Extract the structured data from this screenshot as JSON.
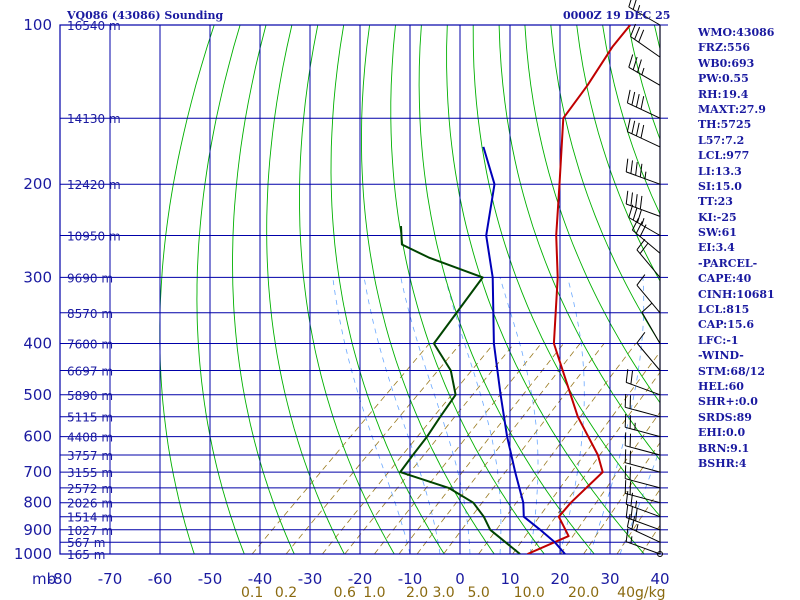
{
  "header": {
    "station": "VQ086 (43086) Sounding",
    "time": "0000Z 19 DEC 25"
  },
  "chart_data": {
    "type": "line",
    "title": "VQ086 (43086) Sounding",
    "xlabel": "",
    "ylabel": "mb",
    "xlim": [
      -80,
      40
    ],
    "ylim": [
      1000,
      100
    ],
    "pressure_ticks": [
      "100",
      "200",
      "300",
      "400",
      "500",
      "600",
      "700",
      "800",
      "900",
      "1000"
    ],
    "temperature_ticks": [
      "-80",
      "-70",
      "-60",
      "-50",
      "-40",
      "-30",
      "-20",
      "-10",
      "0",
      "10",
      "20",
      "30",
      "40"
    ],
    "mixing_ratio_ticks": [
      "0.1",
      "0.2",
      "0.6",
      "1.0",
      "2.0",
      "3.0",
      "5.0",
      "10.0",
      "20.0",
      "40g/kg"
    ],
    "height_labels": [
      {
        "p": 100,
        "label": "16540 m"
      },
      {
        "p": 150,
        "label": "14130 m"
      },
      {
        "p": 200,
        "label": "12420 m"
      },
      {
        "p": 250,
        "label": "10950 m"
      },
      {
        "p": 300,
        "label": "9690 m"
      },
      {
        "p": 350,
        "label": "8570 m"
      },
      {
        "p": 400,
        "label": "7600 m"
      },
      {
        "p": 450,
        "label": "6697 m"
      },
      {
        "p": 500,
        "label": "5890 m"
      },
      {
        "p": 550,
        "label": "5115 m"
      },
      {
        "p": 600,
        "label": "4408 m"
      },
      {
        "p": 650,
        "label": "3757 m"
      },
      {
        "p": 700,
        "label": "3155 m"
      },
      {
        "p": 750,
        "label": "2572 m"
      },
      {
        "p": 800,
        "label": "2026 m"
      },
      {
        "p": 850,
        "label": "1514 m"
      },
      {
        "p": 900,
        "label": "1027 m"
      },
      {
        "p": 950,
        "label": "567 m"
      },
      {
        "p": 1000,
        "label": "165 m"
      }
    ],
    "series": [
      {
        "values": [
          {
            "p": 1000,
            "t": 13.5
          },
          {
            "p": 925,
            "t": 18
          },
          {
            "p": 850,
            "t": 12
          },
          {
            "p": 800,
            "t": 11.5
          },
          {
            "p": 700,
            "t": 11.5
          },
          {
            "p": 650,
            "t": 7
          },
          {
            "p": 550,
            "t": -5
          },
          {
            "p": 400,
            "t": -25
          },
          {
            "p": 300,
            "t": -38
          },
          {
            "p": 250,
            "t": -47
          },
          {
            "p": 200,
            "t": -57
          },
          {
            "p": 150,
            "t": -70
          },
          {
            "p": 130,
            "t": -72
          },
          {
            "p": 110,
            "t": -75
          },
          {
            "p": 100,
            "t": -76
          }
        ]
      },
      {
        "values": [
          {
            "p": 1000,
            "t": 12
          },
          {
            "p": 900,
            "t": 1
          },
          {
            "p": 850,
            "t": -3
          },
          {
            "p": 800,
            "t": -8
          },
          {
            "p": 750,
            "t": -16
          },
          {
            "p": 700,
            "t": -29
          },
          {
            "p": 650,
            "t": -30
          },
          {
            "p": 600,
            "t": -31
          },
          {
            "p": 550,
            "t": -32.5
          },
          {
            "p": 500,
            "t": -34
          },
          {
            "p": 450,
            "t": -40
          },
          {
            "p": 400,
            "t": -49
          },
          {
            "p": 300,
            "t": -53
          },
          {
            "p": 275,
            "t": -68
          },
          {
            "p": 260,
            "t": -76
          },
          {
            "p": 240,
            "t": -80
          }
        ]
      },
      {
        "values": [
          {
            "p": 1000,
            "t": 21
          },
          {
            "p": 950,
            "t": 16.5
          },
          {
            "p": 900,
            "t": 11
          },
          {
            "p": 850,
            "t": 5
          },
          {
            "p": 800,
            "t": 2
          },
          {
            "p": 700,
            "t": -6
          },
          {
            "p": 600,
            "t": -15
          },
          {
            "p": 500,
            "t": -25
          },
          {
            "p": 400,
            "t": -37
          },
          {
            "p": 300,
            "t": -51
          },
          {
            "p": 250,
            "t": -61
          },
          {
            "p": 200,
            "t": -70
          },
          {
            "p": 170,
            "t": -80
          }
        ]
      }
    ],
    "wind_barbs": [
      {
        "p": 100,
        "dir": 300,
        "spd": 25
      },
      {
        "p": 115,
        "dir": 305,
        "spd": 30
      },
      {
        "p": 130,
        "dir": 300,
        "spd": 35
      },
      {
        "p": 150,
        "dir": 295,
        "spd": 40
      },
      {
        "p": 170,
        "dir": 295,
        "spd": 40
      },
      {
        "p": 200,
        "dir": 290,
        "spd": 45
      },
      {
        "p": 230,
        "dir": 290,
        "spd": 40
      },
      {
        "p": 250,
        "dir": 300,
        "spd": 35
      },
      {
        "p": 270,
        "dir": 310,
        "spd": 30
      },
      {
        "p": 300,
        "dir": 320,
        "spd": 20
      },
      {
        "p": 350,
        "dir": 320,
        "spd": 10
      },
      {
        "p": 400,
        "dir": 330,
        "spd": 10
      },
      {
        "p": 450,
        "dir": 320,
        "spd": 10
      },
      {
        "p": 500,
        "dir": 290,
        "spd": 20
      },
      {
        "p": 550,
        "dir": 285,
        "spd": 20
      },
      {
        "p": 600,
        "dir": 285,
        "spd": 25
      },
      {
        "p": 650,
        "dir": 285,
        "spd": 20
      },
      {
        "p": 700,
        "dir": 285,
        "spd": 20
      },
      {
        "p": 750,
        "dir": 285,
        "spd": 20
      },
      {
        "p": 800,
        "dir": 285,
        "spd": 20
      },
      {
        "p": 850,
        "dir": 290,
        "spd": 25
      },
      {
        "p": 900,
        "dir": 290,
        "spd": 30
      },
      {
        "p": 950,
        "dir": 295,
        "spd": 25
      },
      {
        "p": 1000,
        "dir": 290,
        "spd": 15
      }
    ]
  },
  "indices": [
    "WMO:43086",
    "FRZ:556",
    "WB0:693",
    "PW:0.55",
    "RH:19.4",
    "MAXT:27.9",
    "TH:5725",
    "L57:7.2",
    "LCL:977",
    "LI:13.3",
    "SI:15.0",
    "TT:23",
    "KI:-25",
    "SW:61",
    "EI:3.4",
    "-PARCEL-",
    "CAPE:40",
    "CINH:10681",
    "LCL:815",
    "CAP:15.6",
    "LFC:-1",
    "-WIND-",
    "STM:68/12",
    "HEL:60",
    "SHR+:0.0",
    "SRDS:89",
    "EHI:0.0",
    "BRN:9.1",
    "BSHR:4"
  ],
  "colors": {
    "grid": "#0000a8",
    "dry_adiabat": "#00b000",
    "mixing_ratio": "#9a7a20",
    "moist_adiabat": "#6aa8ff",
    "temperature": "#c00000",
    "dewpoint": "#004400",
    "parcel": "#0000b8",
    "barb": "#000000"
  }
}
